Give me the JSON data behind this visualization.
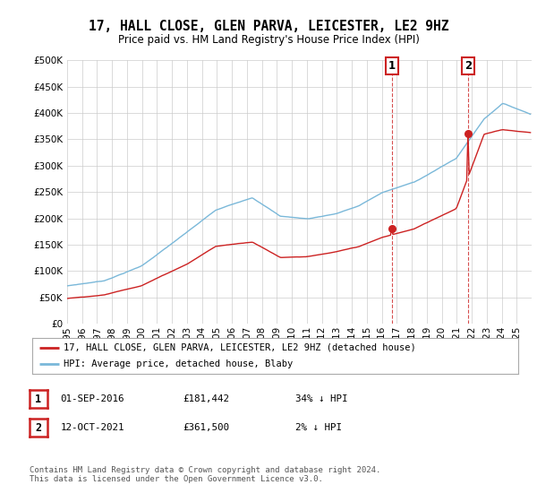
{
  "title": "17, HALL CLOSE, GLEN PARVA, LEICESTER, LE2 9HZ",
  "subtitle": "Price paid vs. HM Land Registry's House Price Index (HPI)",
  "ylim": [
    0,
    500000
  ],
  "ytick_values": [
    0,
    50000,
    100000,
    150000,
    200000,
    250000,
    300000,
    350000,
    400000,
    450000,
    500000
  ],
  "hpi_color": "#7ab8d9",
  "price_color": "#cc2222",
  "vline_color": "#cc2222",
  "transaction1_value": 181442,
  "transaction1_year": 2016.667,
  "transaction2_value": 361500,
  "transaction2_year": 2021.75,
  "legend_line1": "17, HALL CLOSE, GLEN PARVA, LEICESTER, LE2 9HZ (detached house)",
  "legend_line2": "HPI: Average price, detached house, Blaby",
  "table_row1": [
    "1",
    "01-SEP-2016",
    "£181,442",
    "34% ↓ HPI"
  ],
  "table_row2": [
    "2",
    "12-OCT-2021",
    "£361,500",
    "2% ↓ HPI"
  ],
  "footnote": "Contains HM Land Registry data © Crown copyright and database right 2024.\nThis data is licensed under the Open Government Licence v3.0.",
  "background_color": "#ffffff",
  "grid_color": "#cccccc",
  "title_fontsize": 10.5,
  "subtitle_fontsize": 8.5,
  "tick_fontsize": 7.5,
  "hpi_key_t": [
    0.0,
    0.08,
    0.16,
    0.26,
    0.32,
    0.4,
    0.46,
    0.52,
    0.58,
    0.63,
    0.68,
    0.75,
    0.84,
    0.9,
    0.94,
    1.0
  ],
  "hpi_key_v": [
    72000,
    82000,
    110000,
    175000,
    215000,
    240000,
    205000,
    200000,
    210000,
    225000,
    250000,
    270000,
    315000,
    390000,
    420000,
    400000
  ],
  "red_key_t": [
    0.0,
    0.08,
    0.16,
    0.26,
    0.32,
    0.4,
    0.46,
    0.52,
    0.58,
    0.63,
    0.68,
    0.75,
    0.84,
    0.9,
    0.94,
    1.0
  ],
  "red_key_v": [
    48000,
    55000,
    73000,
    115000,
    148000,
    157000,
    128000,
    130000,
    138000,
    148000,
    165000,
    181442,
    220000,
    361500,
    370000,
    365000
  ]
}
